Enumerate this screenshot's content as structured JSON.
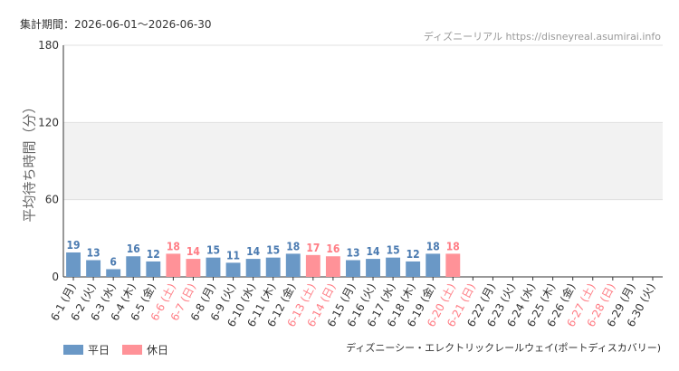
{
  "period_label": "集計期間：2026-06-01～2026-06-30",
  "site_label": "ディズニーリアル https://disneyreal.asumirai.info",
  "attraction": "ディズニーシー・エレクトリックレールウェイ(ポートディスカバリー)",
  "colors": {
    "weekday": "#6a98c6",
    "holiday": "#ff9298",
    "weekday_text": "#4a7ab0",
    "holiday_text": "#ff7c84",
    "band": "#f2f2f2",
    "axis": "#333333",
    "grid": "#e0e0e0"
  },
  "chart_data": {
    "type": "bar",
    "ylabel": "平均待ち時間（分）",
    "ylim": [
      0,
      180
    ],
    "yticks": [
      0,
      60,
      120,
      180
    ],
    "grid": true,
    "legend_position": "bottom-left",
    "legend": [
      {
        "label": "平日",
        "kind": "weekday"
      },
      {
        "label": "休日",
        "kind": "holiday"
      }
    ],
    "categories": [
      "6-1 (月)",
      "6-2 (火)",
      "6-3 (水)",
      "6-4 (木)",
      "6-5 (金)",
      "6-6 (土)",
      "6-7 (日)",
      "6-8 (月)",
      "6-9 (火)",
      "6-10 (水)",
      "6-11 (木)",
      "6-12 (金)",
      "6-13 (土)",
      "6-14 (日)",
      "6-15 (月)",
      "6-16 (火)",
      "6-17 (水)",
      "6-18 (木)",
      "6-19 (金)",
      "6-20 (土)",
      "6-21 (日)",
      "6-22 (月)",
      "6-23 (火)",
      "6-24 (水)",
      "6-25 (木)",
      "6-26 (金)",
      "6-27 (土)",
      "6-28 (日)",
      "6-29 (月)",
      "6-30 (火)"
    ],
    "values": [
      19,
      13,
      6,
      16,
      12,
      18,
      14,
      15,
      11,
      14,
      15,
      18,
      17,
      16,
      13,
      14,
      15,
      12,
      18,
      18,
      null,
      null,
      null,
      null,
      null,
      null,
      null,
      null,
      null,
      null
    ],
    "day_type": [
      "weekday",
      "weekday",
      "weekday",
      "weekday",
      "weekday",
      "holiday",
      "holiday",
      "weekday",
      "weekday",
      "weekday",
      "weekday",
      "weekday",
      "holiday",
      "holiday",
      "weekday",
      "weekday",
      "weekday",
      "weekday",
      "weekday",
      "holiday",
      "holiday",
      "weekday",
      "weekday",
      "weekday",
      "weekday",
      "weekday",
      "holiday",
      "holiday",
      "weekday",
      "weekday"
    ]
  }
}
